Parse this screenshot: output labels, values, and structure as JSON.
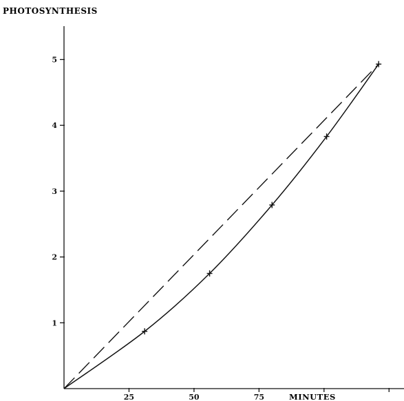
{
  "chart_data": {
    "type": "line",
    "title": "",
    "ylabel": "PHOTOSYNTHESIS",
    "xlabel": "MINUTES",
    "xlim": [
      0,
      125
    ],
    "ylim": [
      0,
      5.5
    ],
    "x_ticks": [
      25,
      50,
      75
    ],
    "x_tick_labels": [
      "25",
      "50",
      "75"
    ],
    "y_ticks": [
      1,
      2,
      3,
      4,
      5
    ],
    "y_tick_labels": [
      "1",
      "2",
      "3",
      "4",
      "5"
    ],
    "grid": false,
    "legend": false,
    "series": [
      {
        "style": "solid",
        "markers": "plus",
        "x": [
          0,
          31,
          56,
          80,
          101,
          121
        ],
        "y": [
          0,
          0.87,
          1.75,
          2.79,
          3.83,
          4.93
        ]
      },
      {
        "style": "dashed",
        "markers": "none",
        "x": [
          0,
          121
        ],
        "y": [
          0,
          4.93
        ]
      }
    ],
    "colors": {
      "ink": "#111111",
      "background": "#ffffff"
    }
  }
}
